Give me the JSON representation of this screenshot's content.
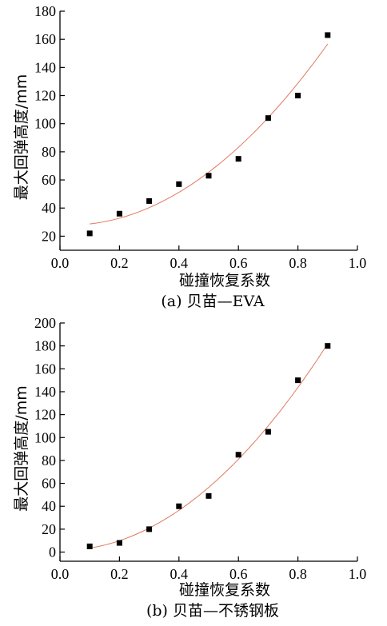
{
  "chart_data": [
    {
      "type": "scatter",
      "caption": "(a) 贝苗—EVA",
      "xlabel": "碰撞恢复系数",
      "ylabel": "最大回弹高度/mm",
      "xlim": [
        0.0,
        1.0
      ],
      "ylim": [
        10,
        180
      ],
      "xticks": [
        0.0,
        0.2,
        0.4,
        0.6,
        0.8,
        1.0
      ],
      "xtick_labels": [
        "0.0",
        "0.2",
        "0.4",
        "0.6",
        "0.8",
        "1.0"
      ],
      "yticks": [
        20,
        40,
        60,
        80,
        100,
        120,
        140,
        160,
        180
      ],
      "grid": false,
      "marker_color": "#000000",
      "fit_color": "#e07a5f",
      "series": [
        {
          "x": [
            0.1,
            0.2,
            0.3,
            0.4,
            0.5,
            0.6,
            0.7,
            0.8,
            0.9
          ],
          "y": [
            22,
            36,
            45,
            57,
            63,
            75,
            104,
            120,
            163
          ]
        }
      ],
      "fit": {
        "type": "quadratic",
        "x_range": [
          0.1,
          0.9
        ],
        "coefficients": [
          28,
          -10,
          170
        ]
      }
    },
    {
      "type": "scatter",
      "caption": "(b) 贝苗—不锈钢板",
      "xlabel": "碰撞恢复系数",
      "ylabel": "最大回弹高度/mm",
      "xlim": [
        0.0,
        1.0
      ],
      "ylim": [
        -8,
        200
      ],
      "xticks": [
        0.0,
        0.2,
        0.4,
        0.6,
        0.8,
        1.0
      ],
      "xtick_labels": [
        "0.0",
        "0.2",
        "0.4",
        "0.6",
        "0.8",
        "1.0"
      ],
      "yticks": [
        0,
        20,
        40,
        60,
        80,
        100,
        120,
        140,
        160,
        180,
        200
      ],
      "grid": false,
      "marker_color": "#000000",
      "fit_color": "#e07a5f",
      "series": [
        {
          "x": [
            0.1,
            0.2,
            0.3,
            0.4,
            0.5,
            0.6,
            0.7,
            0.8,
            0.9
          ],
          "y": [
            5,
            8,
            20,
            40,
            49,
            85,
            105,
            150,
            180
          ]
        }
      ],
      "fit": {
        "type": "quadratic",
        "x_range": [
          0.1,
          0.9
        ],
        "coefficients": [
          1.5,
          -3,
          226
        ]
      }
    }
  ]
}
